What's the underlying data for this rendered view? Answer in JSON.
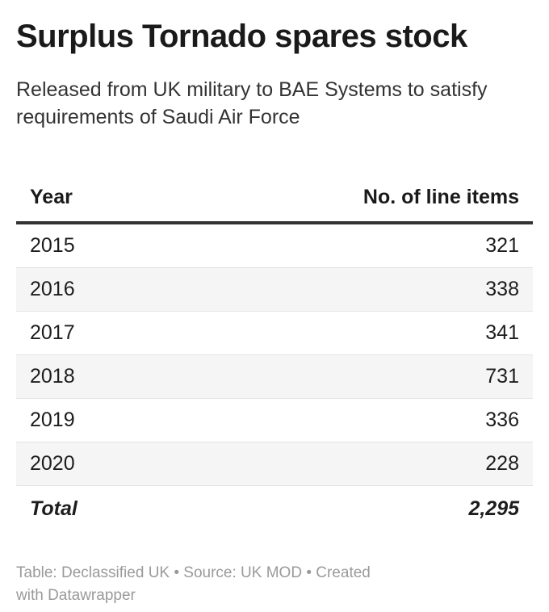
{
  "title": "Surplus Tornado spares stock",
  "subtitle": "Released from UK military to BAE Systems to satisfy requirements of Saudi Air Force",
  "table": {
    "headers": [
      "Year",
      "No. of line items"
    ],
    "rows": [
      [
        "2015",
        "321"
      ],
      [
        "2016",
        "338"
      ],
      [
        "2017",
        "341"
      ],
      [
        "2018",
        "731"
      ],
      [
        "2019",
        "336"
      ],
      [
        "2020",
        "228"
      ]
    ],
    "total": [
      "Total",
      "2,295"
    ]
  },
  "footer": "Table: Declassified UK • Source: UK MOD • Created with Datawrapper",
  "chart_data": {
    "type": "table",
    "title": "Surplus Tornado spares stock",
    "subtitle": "Released from UK military to BAE Systems to satisfy requirements of Saudi Air Force",
    "columns": [
      "Year",
      "No. of line items"
    ],
    "categories": [
      "2015",
      "2016",
      "2017",
      "2018",
      "2019",
      "2020"
    ],
    "values": [
      321,
      338,
      341,
      731,
      336,
      228
    ],
    "total": 2295
  }
}
